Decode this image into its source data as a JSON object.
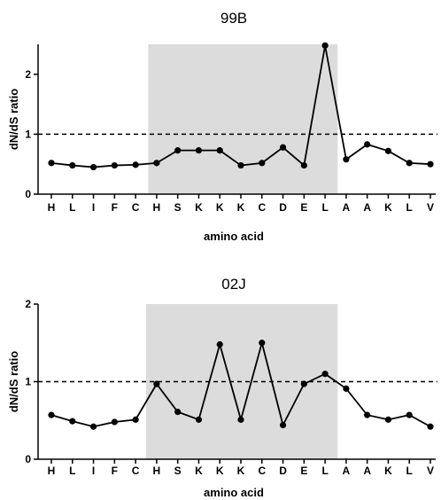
{
  "chart_data": [
    {
      "type": "line",
      "title": "99B",
      "xlabel": "amino acid",
      "ylabel": "dN/dS ratio",
      "categories": [
        "H",
        "L",
        "I",
        "F",
        "C",
        "H",
        "S",
        "K",
        "K",
        "K",
        "C",
        "D",
        "E",
        "L",
        "A",
        "A",
        "K",
        "L",
        "V"
      ],
      "values": [
        0.52,
        0.48,
        0.45,
        0.48,
        0.49,
        0.52,
        0.73,
        0.73,
        0.73,
        0.48,
        0.52,
        0.78,
        0.48,
        2.48,
        0.58,
        0.83,
        0.72,
        0.52,
        0.5
      ],
      "ylim": [
        0,
        2.5
      ],
      "yticks": [
        0,
        1,
        2
      ],
      "reference_line": 1,
      "shaded_region": {
        "from_index": 4.6,
        "to_index": 13.6
      }
    },
    {
      "type": "line",
      "title": "02J",
      "xlabel": "amino acid",
      "ylabel": "dN/dS ratio",
      "categories": [
        "H",
        "L",
        "I",
        "F",
        "C",
        "H",
        "S",
        "K",
        "K",
        "K",
        "C",
        "D",
        "E",
        "L",
        "A",
        "A",
        "K",
        "L",
        "V"
      ],
      "values": [
        0.57,
        0.49,
        0.42,
        0.48,
        0.51,
        0.97,
        0.61,
        0.51,
        1.48,
        0.51,
        1.5,
        0.44,
        0.97,
        1.1,
        0.91,
        0.57,
        0.51,
        0.57,
        0.42
      ],
      "ylim": [
        0,
        2
      ],
      "yticks": [
        0,
        1,
        2
      ],
      "reference_line": 1,
      "shaded_region": {
        "from_index": 4.5,
        "to_index": 13.6
      }
    }
  ]
}
